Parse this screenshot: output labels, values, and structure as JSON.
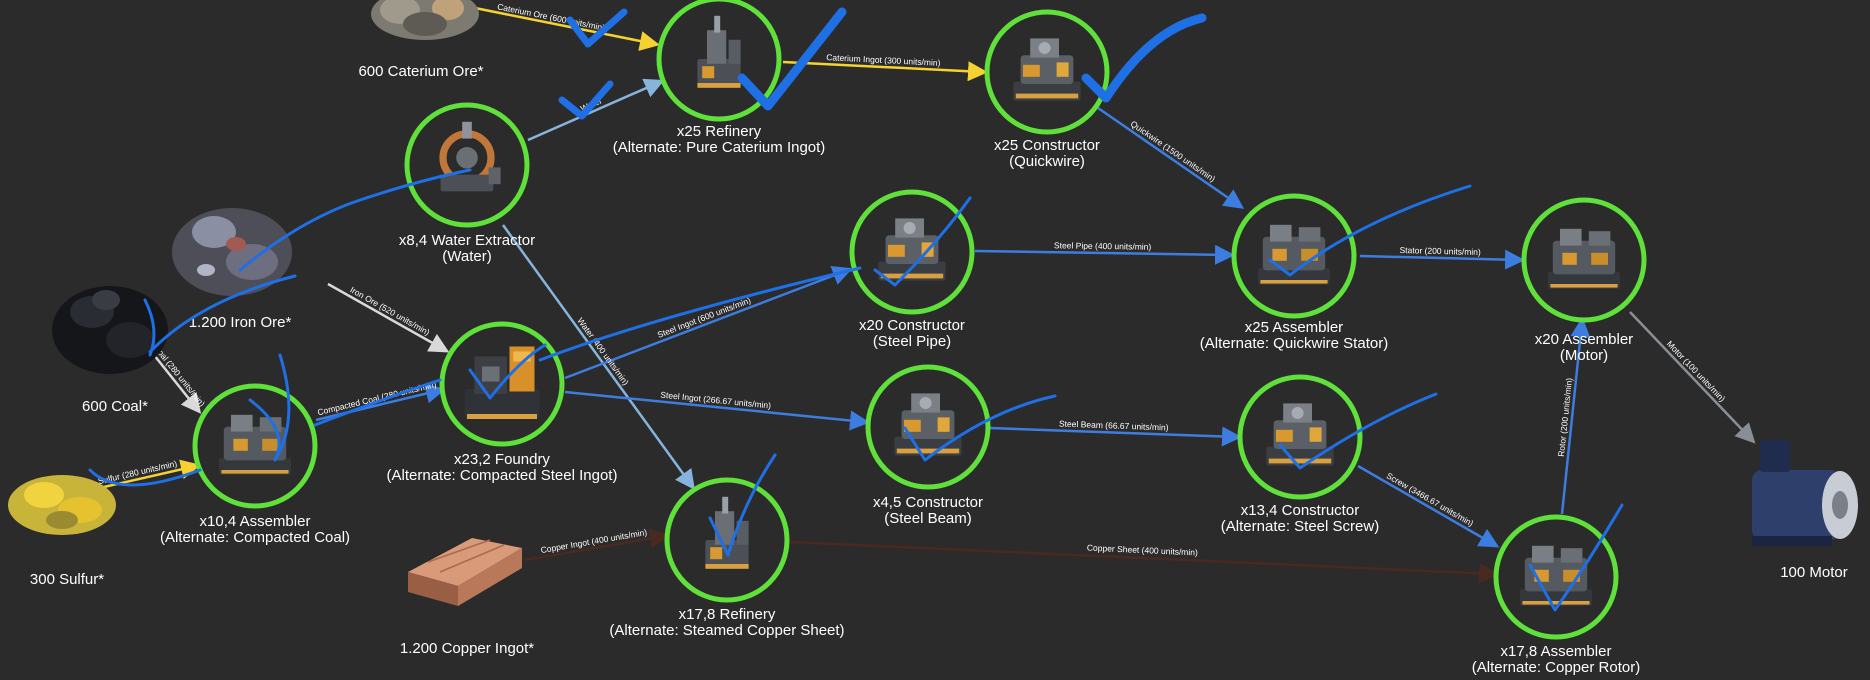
{
  "colors": {
    "background": "#2b2b2b",
    "node_ring": "#5fe03a",
    "flow_blue": "#3d7de0",
    "flow_yellow": "#f5d230",
    "flow_white": "#d9d9d9",
    "flow_lightblue": "#86b4dc",
    "flow_gray": "#8a8f96",
    "flow_brown": "#4a2a20",
    "annotation": "#1f6fe5",
    "text": "#ffffff"
  },
  "resources": [
    {
      "id": "caterium_ore",
      "label": "600 Caterium Ore*",
      "icon": "caterium-ore-icon"
    },
    {
      "id": "iron_ore",
      "label": "1.200 Iron Ore*",
      "icon": "iron-ore-icon"
    },
    {
      "id": "coal",
      "label": "600 Coal*",
      "icon": "coal-icon"
    },
    {
      "id": "sulfur",
      "label": "300 Sulfur*",
      "icon": "sulfur-icon"
    },
    {
      "id": "copper_ingot",
      "label": "1.200 Copper Ingot*",
      "icon": "copper-ingot-icon"
    },
    {
      "id": "motor",
      "label": "100 Motor",
      "icon": "motor-icon"
    }
  ],
  "machines": [
    {
      "id": "refinery_cat",
      "l1": "x25 Refinery",
      "l2": "(Alternate: Pure Caterium Ingot)",
      "icon": "refinery-icon"
    },
    {
      "id": "constructor_qw",
      "l1": "x25 Constructor",
      "l2": "(Quickwire)",
      "icon": "constructor-icon"
    },
    {
      "id": "water",
      "l1": "x8,4 Water Extractor",
      "l2": "(Water)",
      "icon": "water-extractor-icon"
    },
    {
      "id": "constructor_pipe",
      "l1": "x20 Constructor",
      "l2": "(Steel Pipe)",
      "icon": "constructor-icon"
    },
    {
      "id": "assembler_stator",
      "l1": "x25 Assembler",
      "l2": "(Alternate: Quickwire Stator)",
      "icon": "assembler-icon"
    },
    {
      "id": "assembler_motor",
      "l1": "x20 Assembler",
      "l2": "(Motor)",
      "icon": "assembler-icon"
    },
    {
      "id": "foundry",
      "l1": "x23,2 Foundry",
      "l2": "(Alternate: Compacted Steel Ingot)",
      "icon": "foundry-icon"
    },
    {
      "id": "assembler_coal",
      "l1": "x10,4 Assembler",
      "l2": "(Alternate: Compacted Coal)",
      "icon": "assembler-icon"
    },
    {
      "id": "constructor_beam",
      "l1": "x4,5 Constructor",
      "l2": "(Steel Beam)",
      "icon": "constructor-icon"
    },
    {
      "id": "constructor_screw",
      "l1": "x13,4 Constructor",
      "l2": "(Alternate: Steel Screw)",
      "icon": "constructor-icon"
    },
    {
      "id": "refinery_copper",
      "l1": "x17,8 Refinery",
      "l2": "(Alternate: Steamed Copper Sheet)",
      "icon": "refinery-icon"
    },
    {
      "id": "assembler_rotor",
      "l1": "x17,8 Assembler",
      "l2": "(Alternate: Copper Rotor)",
      "icon": "assembler-icon"
    }
  ],
  "edges": [
    {
      "id": "caterium_ore",
      "label": "Caterium Ore (600 units/min)"
    },
    {
      "id": "caterium_ingot",
      "label": "Caterium Ingot (300 units/min)"
    },
    {
      "id": "water_to_refinery",
      "label": "Water"
    },
    {
      "id": "quickwire",
      "label": "Quickwire (1500 units/min)"
    },
    {
      "id": "iron_ore",
      "label": "Iron Ore (520 units/min)"
    },
    {
      "id": "coal",
      "label": "Coal (280 units/min)"
    },
    {
      "id": "sulfur",
      "label": "Sulfur (280 units/min)"
    },
    {
      "id": "compacted_coal",
      "label": "Compacted Coal (280 units/min)"
    },
    {
      "id": "water_to_copper",
      "label": "Water (400 units/min)"
    },
    {
      "id": "steel_ingot_pipe",
      "label": "Steel Ingot (600 units/min)"
    },
    {
      "id": "steel_ingot_beam",
      "label": "Steel Ingot (266.67 units/min)"
    },
    {
      "id": "steel_pipe",
      "label": "Steel Pipe (400 units/min)"
    },
    {
      "id": "stator",
      "label": "Stator (200 units/min)"
    },
    {
      "id": "steel_beam",
      "label": "Steel Beam (66.67 units/min)"
    },
    {
      "id": "screw",
      "label": "Screw (3466.67 units/min)"
    },
    {
      "id": "rotor",
      "label": "Rotor (200 units/min)"
    },
    {
      "id": "motor",
      "label": "Motor (100 units/min)"
    },
    {
      "id": "copper_ingot",
      "label": "Copper Ingot (400 units/min)"
    },
    {
      "id": "copper_sheet",
      "label": "Copper Sheet (400 units/min)"
    }
  ]
}
